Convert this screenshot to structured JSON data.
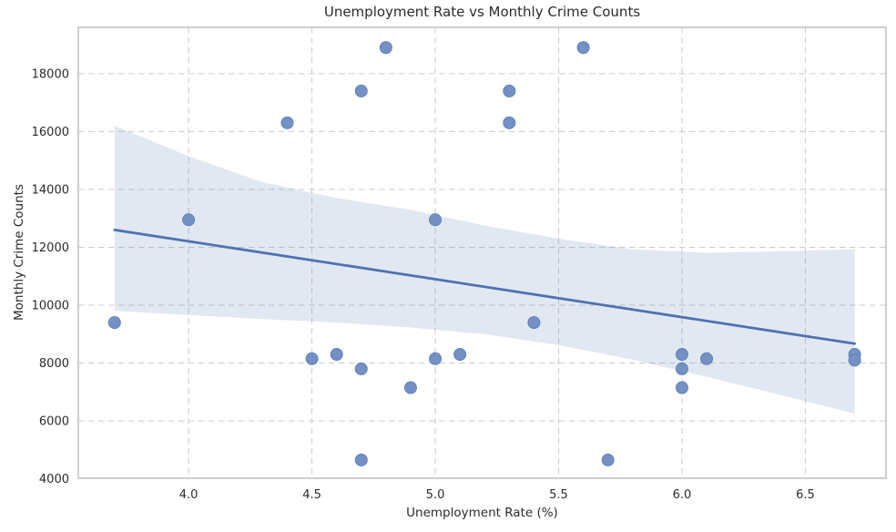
{
  "figure": {
    "background": "#ffffff"
  },
  "chart_data": {
    "type": "scatter",
    "title": "Unemployment Rate vs Monthly Crime Counts",
    "xlabel": "Unemployment Rate (%)",
    "ylabel": "Monthly Crime Counts",
    "xlim": [
      3.553,
      6.827
    ],
    "ylim": [
      4020,
      19600
    ],
    "x_ticks": [
      4.0,
      4.5,
      5.0,
      5.5,
      6.0,
      6.5
    ],
    "x_tick_labels": [
      "4.0",
      "4.5",
      "5.0",
      "5.5",
      "6.0",
      "6.5"
    ],
    "y_ticks": [
      4000,
      6000,
      8000,
      10000,
      12000,
      14000,
      16000,
      18000
    ],
    "y_tick_labels": [
      "4000",
      "6000",
      "8000",
      "10000",
      "12000",
      "14000",
      "16000",
      "18000"
    ],
    "grid": true,
    "grid_style": "dashed",
    "legend": "none",
    "points": [
      [
        3.7,
        9400
      ],
      [
        4.0,
        12950
      ],
      [
        4.4,
        16300
      ],
      [
        4.5,
        8150
      ],
      [
        4.6,
        8300
      ],
      [
        4.7,
        17400
      ],
      [
        4.7,
        7800
      ],
      [
        4.7,
        4650
      ],
      [
        4.8,
        18900
      ],
      [
        4.9,
        7150
      ],
      [
        5.0,
        12950
      ],
      [
        5.0,
        8150
      ],
      [
        5.1,
        8300
      ],
      [
        5.3,
        17400
      ],
      [
        5.3,
        16300
      ],
      [
        5.4,
        9400
      ],
      [
        5.6,
        18900
      ],
      [
        5.7,
        4650
      ],
      [
        6.0,
        8300
      ],
      [
        6.0,
        7800
      ],
      [
        6.0,
        7150
      ],
      [
        6.1,
        8150
      ],
      [
        6.7,
        8300
      ],
      [
        6.7,
        8100
      ]
    ],
    "regression_line": [
      [
        3.7,
        12600
      ],
      [
        6.7,
        8670
      ]
    ],
    "confidence_band": {
      "top": [
        [
          3.7,
          16200
        ],
        [
          4.0,
          15150
        ],
        [
          4.3,
          14250
        ],
        [
          4.6,
          13700
        ],
        [
          4.9,
          13300
        ],
        [
          5.2,
          12750
        ],
        [
          5.5,
          12300
        ],
        [
          5.8,
          11930
        ],
        [
          6.1,
          11810
        ],
        [
          6.4,
          11860
        ],
        [
          6.7,
          11930
        ]
      ],
      "bottom": [
        [
          3.7,
          9800
        ],
        [
          4.0,
          9660
        ],
        [
          4.3,
          9520
        ],
        [
          4.6,
          9400
        ],
        [
          4.9,
          9230
        ],
        [
          5.2,
          9000
        ],
        [
          5.5,
          8620
        ],
        [
          5.8,
          8120
        ],
        [
          6.1,
          7520
        ],
        [
          6.4,
          6900
        ],
        [
          6.7,
          6250
        ]
      ]
    },
    "colors": {
      "marker_fill": "#7591c4",
      "marker_edge": "#5c82ba",
      "line": "#4c72b0",
      "band_fill": "#4c72b0",
      "band_opacity": 0.16,
      "grid": "#cccccc",
      "spine": "#c9c9c9",
      "text": "#2b2b2b",
      "background": "#ffffff"
    },
    "marker_radius": 6.5
  }
}
